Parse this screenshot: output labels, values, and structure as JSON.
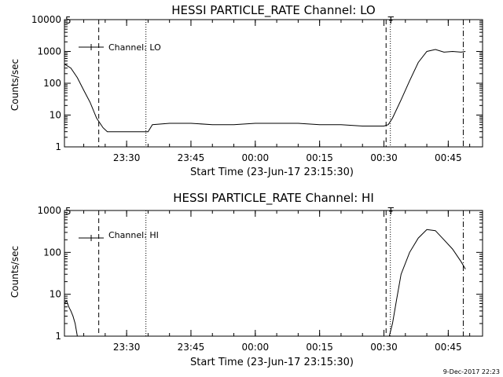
{
  "footer": {
    "timestamp": "9-Dec-2017 22:23"
  },
  "chart_data": [
    {
      "type": "line",
      "title": "HESSI PARTICLE_RATE Channel: LO",
      "xlabel": "Start Time (23-Jun-17 23:15:30)",
      "ylabel": "Counts/sec",
      "y_scale": "log",
      "ylim": [
        1,
        10000
      ],
      "xlim": [
        "23:15:30",
        "00:53:00"
      ],
      "x_ticks": [
        "23:30",
        "23:45",
        "00:00",
        "00:15",
        "00:30",
        "00:45"
      ],
      "y_ticks": [
        "1",
        "10",
        "100",
        "1000",
        "10000"
      ],
      "legend": {
        "position": "top-left",
        "entries": [
          "Channel: LO"
        ]
      },
      "series": [
        {
          "name": "Channel: LO",
          "x": [
            "23:15:30",
            "23:17:00",
            "23:18:30",
            "23:20:00",
            "23:21:30",
            "23:23:00",
            "23:24:30",
            "23:25:30",
            "23:26:30",
            "23:28:00",
            "23:30:00",
            "23:32:00",
            "23:33:30",
            "23:35:00",
            "23:36:00",
            "23:40:00",
            "23:45:00",
            "23:50:00",
            "23:55:00",
            "00:00:00",
            "00:05:00",
            "00:10:00",
            "00:15:00",
            "00:20:00",
            "00:25:00",
            "00:28:00",
            "00:30:00",
            "00:31:00",
            "00:32:00",
            "00:34:00",
            "00:36:00",
            "00:38:00",
            "00:40:00",
            "00:42:00",
            "00:44:00",
            "00:46:00",
            "00:48:00",
            "00:49:00"
          ],
          "y": [
            400,
            300,
            150,
            60,
            25,
            8,
            4,
            3,
            3,
            3,
            3,
            3,
            3,
            3,
            5,
            5.5,
            5.5,
            5,
            5,
            5.5,
            5.5,
            5.5,
            5,
            5,
            4.5,
            4.5,
            4.5,
            5,
            8,
            30,
            120,
            450,
            1000,
            1150,
            950,
            1000,
            950,
            1000
          ]
        }
      ],
      "markers": [
        {
          "time": "23:23:30",
          "style": "dashed"
        },
        {
          "time": "23:34:30",
          "style": "dotted"
        },
        {
          "time": "00:30:30",
          "style": "dashed"
        },
        {
          "time": "00:31:30",
          "style": "dotted"
        },
        {
          "time": "00:48:30",
          "style": "dash-dot"
        }
      ]
    },
    {
      "type": "line",
      "title": "HESSI PARTICLE_RATE Channel: HI",
      "xlabel": "Start Time (23-Jun-17 23:15:30)",
      "ylabel": "Counts/sec",
      "y_scale": "log",
      "ylim": [
        1,
        1000
      ],
      "xlim": [
        "23:15:30",
        "00:53:00"
      ],
      "x_ticks": [
        "23:30",
        "23:45",
        "00:00",
        "00:15",
        "00:30",
        "00:45"
      ],
      "y_ticks": [
        "1",
        "10",
        "100",
        "1000"
      ],
      "legend": {
        "position": "top-left",
        "entries": [
          "Channel: HI"
        ]
      },
      "series": [
        {
          "name": "Channel: HI",
          "x": [
            "23:15:30",
            "23:16:00",
            "23:16:30",
            "23:17:00",
            "23:17:30",
            "23:18:00",
            "23:18:30"
          ],
          "y": [
            6,
            7,
            5,
            4,
            3,
            2,
            1
          ]
        },
        {
          "name": "Channel: HI",
          "x": [
            "00:31:15",
            "00:32:00",
            "00:33:00",
            "00:34:00",
            "00:36:00",
            "00:38:00",
            "00:40:00",
            "00:42:00",
            "00:44:00",
            "00:46:00",
            "00:48:00",
            "00:49:00"
          ],
          "y": [
            1,
            2,
            8,
            30,
            100,
            220,
            350,
            330,
            200,
            120,
            60,
            40
          ]
        }
      ],
      "markers": [
        {
          "time": "23:23:30",
          "style": "dashed"
        },
        {
          "time": "23:34:30",
          "style": "dotted"
        },
        {
          "time": "00:30:30",
          "style": "dashed"
        },
        {
          "time": "00:31:30",
          "style": "dotted"
        },
        {
          "time": "00:48:30",
          "style": "dash-dot"
        }
      ]
    }
  ]
}
